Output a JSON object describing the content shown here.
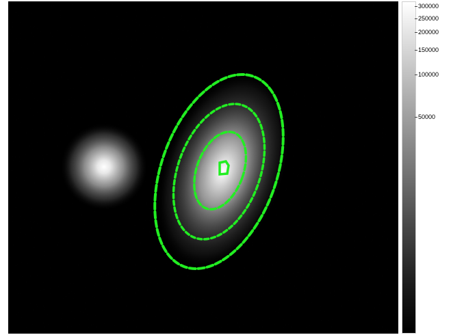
{
  "image": {
    "background_color": "#000000",
    "contour_color": "#22ee22",
    "objects": [
      {
        "name": "star",
        "description": "bright round source with soft glow"
      },
      {
        "name": "galaxy",
        "description": "elongated tilted elliptical galaxy with contour overlays"
      }
    ],
    "contour_levels": 4
  },
  "colorbar": {
    "ticks": [
      {
        "label": "300000"
      },
      {
        "label": "250000"
      },
      {
        "label": "200000"
      },
      {
        "label": "150000"
      },
      {
        "label": "100000"
      },
      {
        "label": "50000"
      }
    ]
  }
}
